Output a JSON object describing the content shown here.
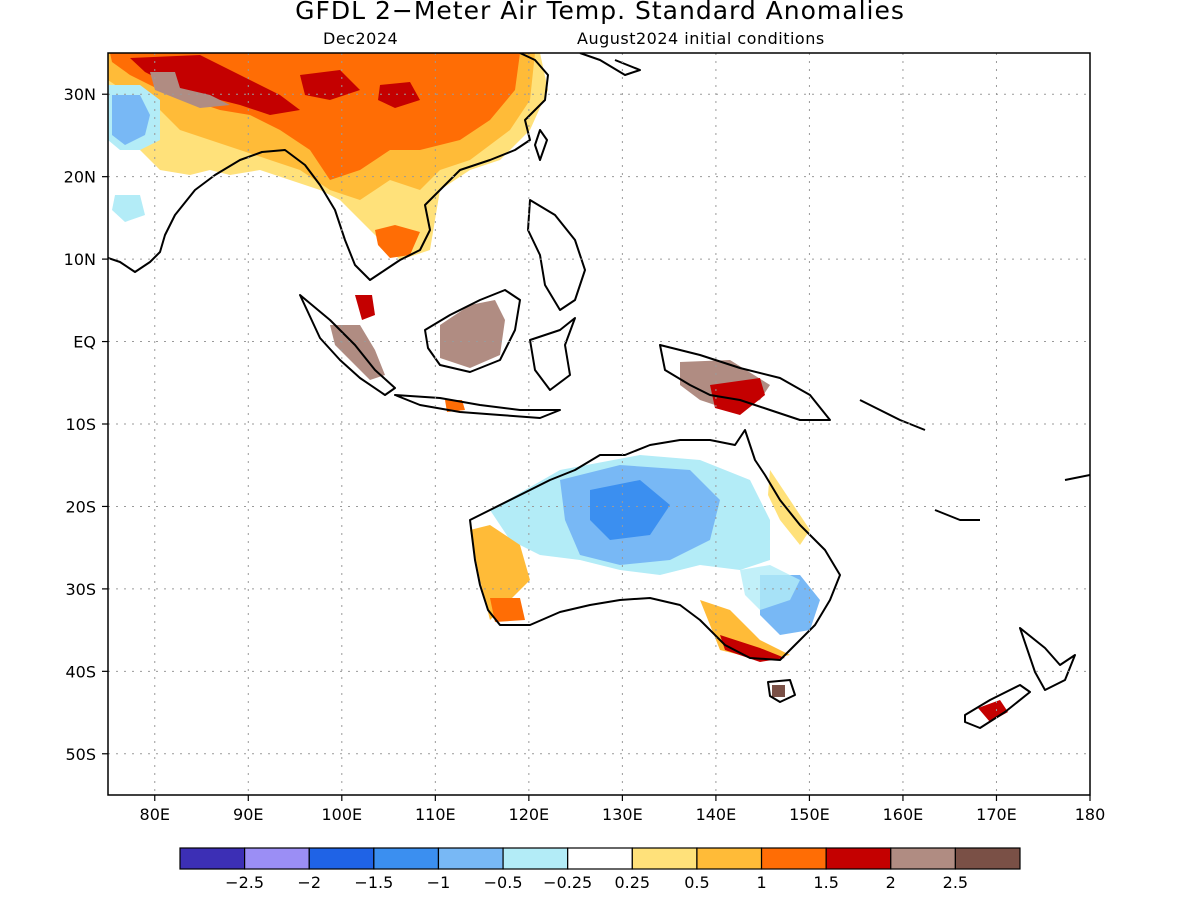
{
  "title": "GFDL 2−Meter Air Temp. Standard Anomalies",
  "subtitle_left": "Dec2024",
  "subtitle_right": "August2024 initial conditions",
  "map": {
    "lon_range": [
      75,
      180
    ],
    "lat_range": [
      -55,
      35
    ],
    "lat_ticks": [
      {
        "v": 30,
        "label": "30N"
      },
      {
        "v": 20,
        "label": "20N"
      },
      {
        "v": 10,
        "label": "10N"
      },
      {
        "v": 0,
        "label": "EQ"
      },
      {
        "v": -10,
        "label": "10S"
      },
      {
        "v": -20,
        "label": "20S"
      },
      {
        "v": -30,
        "label": "30S"
      },
      {
        "v": -40,
        "label": "40S"
      },
      {
        "v": -50,
        "label": "50S"
      }
    ],
    "lon_ticks": [
      {
        "v": 80,
        "label": "80E"
      },
      {
        "v": 90,
        "label": "90E"
      },
      {
        "v": 100,
        "label": "100E"
      },
      {
        "v": 110,
        "label": "110E"
      },
      {
        "v": 120,
        "label": "120E"
      },
      {
        "v": 130,
        "label": "130E"
      },
      {
        "v": 140,
        "label": "140E"
      },
      {
        "v": 150,
        "label": "150E"
      },
      {
        "v": 160,
        "label": "160E"
      },
      {
        "v": 170,
        "label": "170E"
      },
      {
        "v": 180,
        "label": "180"
      }
    ],
    "grid": true
  },
  "colorbar": {
    "colors": [
      "#3c2fb5",
      "#9b8ef5",
      "#1f63e6",
      "#3b8ff0",
      "#78b8f5",
      "#b3ecf7",
      "#ffffff",
      "#ffe17a",
      "#ffbb38",
      "#ff6d05",
      "#c40000",
      "#b08c82",
      "#7a5046"
    ],
    "labels": [
      "−2.5",
      "−2",
      "−1.5",
      "−1",
      "−0.5",
      "−0.25",
      "0.25",
      "0.5",
      "1",
      "1.5",
      "2",
      "2.5"
    ]
  }
}
